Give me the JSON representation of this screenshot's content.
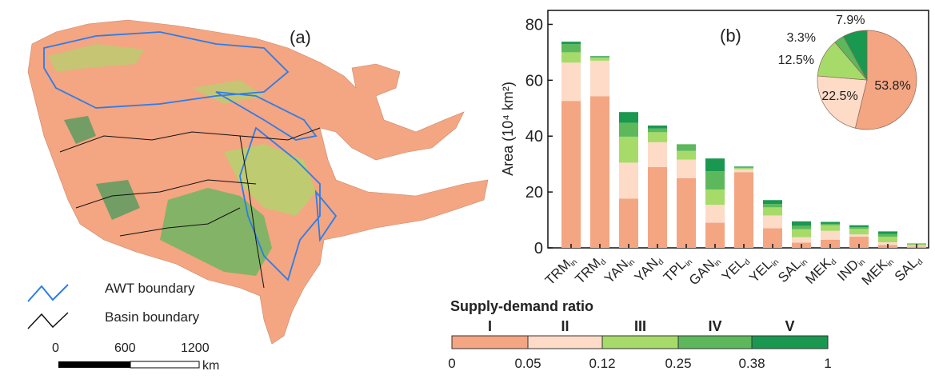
{
  "map": {
    "panel_label": "(a)",
    "legend": [
      {
        "label": "AWT boundary",
        "color": "#2b7de9"
      },
      {
        "label": "Basin boundary",
        "color": "#111111"
      }
    ],
    "scale_bar": {
      "ticks": [
        "0",
        "600",
        "1200"
      ],
      "unit": "km"
    }
  },
  "colors": {
    "I": "#F4A582",
    "II": "#FDDBC7",
    "III": "#A6DB6A",
    "IV": "#5DB85C",
    "V": "#1A9850"
  },
  "chart_data": {
    "type": "bar",
    "stacked": true,
    "panel_label": "(b)",
    "ylabel": "Area (10⁴ km²)",
    "ylim": [
      0,
      85
    ],
    "yticks": [
      0,
      20,
      40,
      60,
      80
    ],
    "grid": false,
    "categories": [
      {
        "base": "TRM",
        "sub": "in"
      },
      {
        "base": "TRM",
        "sub": "d"
      },
      {
        "base": "YAN",
        "sub": "in"
      },
      {
        "base": "YAN",
        "sub": "d"
      },
      {
        "base": "TPL",
        "sub": "in"
      },
      {
        "base": "GAN",
        "sub": "in"
      },
      {
        "base": "YEL",
        "sub": "d"
      },
      {
        "base": "YEL",
        "sub": "in"
      },
      {
        "base": "SAL",
        "sub": "in"
      },
      {
        "base": "MEK",
        "sub": "d"
      },
      {
        "base": "IND",
        "sub": "in"
      },
      {
        "base": "MEK",
        "sub": "in"
      },
      {
        "base": "SAL",
        "sub": "d"
      }
    ],
    "series": [
      {
        "name": "I",
        "values": [
          52.6,
          54.3,
          17.6,
          28.9,
          24.9,
          9.0,
          27.1,
          7.0,
          1.9,
          2.9,
          4.0,
          1.0,
          0.5
        ]
      },
      {
        "name": "II",
        "values": [
          13.7,
          12.7,
          12.9,
          8.9,
          6.7,
          6.4,
          1.0,
          4.6,
          1.9,
          3.2,
          0.8,
          1.0,
          0.3
        ]
      },
      {
        "name": "III",
        "values": [
          3.7,
          1.1,
          9.3,
          3.6,
          3.1,
          5.5,
          0.5,
          2.9,
          2.9,
          2.0,
          2.0,
          2.0,
          0.5
        ]
      },
      {
        "name": "IV",
        "values": [
          2.9,
          0.3,
          5.0,
          1.3,
          2.4,
          6.5,
          0.3,
          1.2,
          1.2,
          0.5,
          0.6,
          1.0,
          0.2
        ]
      },
      {
        "name": "V",
        "values": [
          0.9,
          0.2,
          3.8,
          1.1,
          0.0,
          4.6,
          0.2,
          1.4,
          1.6,
          0.7,
          0.7,
          0.9,
          0.1
        ]
      }
    ],
    "pie": {
      "type": "pie",
      "slices": [
        {
          "class": "I",
          "value": 53.8,
          "label": "53.8%"
        },
        {
          "class": "II",
          "value": 22.5,
          "label": "22.5%"
        },
        {
          "class": "III",
          "value": 12.5,
          "label": "12.5%"
        },
        {
          "class": "IV",
          "value": 3.3,
          "label": "3.3%"
        },
        {
          "class": "V",
          "value": 7.9,
          "label": "7.9%"
        }
      ]
    }
  },
  "colorbar": {
    "title": "Supply-demand ratio",
    "classes": [
      "I",
      "II",
      "III",
      "IV",
      "V"
    ],
    "ticks": [
      "0",
      "0.05",
      "0.12",
      "0.25",
      "0.38",
      "1"
    ]
  }
}
